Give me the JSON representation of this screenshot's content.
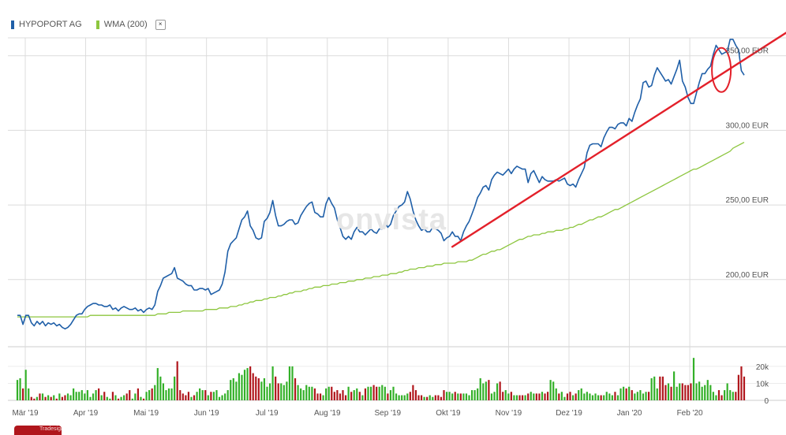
{
  "legend": {
    "items": [
      {
        "label": "HYPOPORT AG",
        "color": "#1f5fa8"
      },
      {
        "label": "WMA (200)",
        "color": "#8dc63f"
      }
    ],
    "close_icon": "×"
  },
  "watermark": "onvista",
  "trade_badge": "Tradesignal®",
  "colors": {
    "price": "#1f5fa8",
    "wma": "#8dc63f",
    "trend": "#e3202a",
    "vol_up": "#33b028",
    "vol_down": "#b0161c",
    "grid": "#dcdcdc"
  },
  "chart_data": {
    "type": "line",
    "x_labels": [
      "Mär '19",
      "Apr '19",
      "Mai '19",
      "Jun '19",
      "Jul '19",
      "Aug '19",
      "Sep '19",
      "Okt '19",
      "Nov '19",
      "Dez '19",
      "Jan '20",
      "Feb '20"
    ],
    "y_ticks": [
      {
        "value": 200,
        "label": "200,00 EUR"
      },
      {
        "value": 250,
        "label": "250,00 EUR"
      },
      {
        "value": 300,
        "label": "300,00 EUR"
      },
      {
        "value": 350,
        "label": "350,00 EUR"
      }
    ],
    "ylim": [
      155,
      362
    ],
    "series": [
      {
        "name": "HYPOPORT AG",
        "values": [
          176,
          176,
          170,
          176,
          176,
          171,
          169,
          172,
          170,
          172,
          169,
          171,
          170,
          171,
          169,
          170,
          168,
          167,
          168,
          170,
          173,
          176,
          177,
          177,
          180,
          182,
          183,
          184,
          184,
          183,
          183,
          182,
          182,
          183,
          180,
          181,
          179,
          181,
          182,
          181,
          180,
          180,
          181,
          179,
          180,
          178,
          180,
          181,
          180,
          183,
          192,
          196,
          201,
          202,
          203,
          204,
          208,
          201,
          200,
          199,
          197,
          196,
          196,
          193,
          193,
          194,
          194,
          193,
          194,
          190,
          191,
          192,
          193,
          197,
          205,
          219,
          224,
          226,
          228,
          234,
          240,
          242,
          246,
          236,
          233,
          228,
          227,
          228,
          239,
          241,
          245,
          253,
          243,
          236,
          236,
          237,
          239,
          240,
          240,
          237,
          238,
          243,
          246,
          249,
          251,
          252,
          245,
          244,
          242,
          242,
          251,
          255,
          251,
          248,
          240,
          235,
          229,
          227,
          229,
          227,
          232,
          235,
          232,
          232,
          230,
          232,
          234,
          232,
          231,
          234,
          234,
          238,
          235,
          237,
          243,
          246,
          249,
          250,
          252,
          259,
          254,
          246,
          240,
          236,
          233,
          234,
          232,
          232,
          235,
          234,
          233,
          231,
          226,
          228,
          229,
          232,
          229,
          229,
          226,
          232,
          236,
          239,
          244,
          249,
          255,
          258,
          262,
          263,
          260,
          267,
          270,
          272,
          271,
          270,
          272,
          274,
          271,
          274,
          276,
          275,
          274,
          274,
          265,
          271,
          273,
          269,
          265,
          269,
          267,
          266,
          266,
          266,
          267,
          266,
          267,
          268,
          264,
          263,
          264,
          262,
          267,
          271,
          275,
          285,
          290,
          291,
          291,
          291,
          289,
          295,
          299,
          302,
          302,
          301,
          304,
          305,
          305,
          303,
          308,
          306,
          312,
          317,
          321,
          332,
          333,
          329,
          330,
          337,
          342,
          339,
          336,
          333,
          334,
          331,
          336,
          341,
          347,
          333,
          329,
          322,
          318,
          318,
          325,
          332,
          338,
          338,
          341,
          343,
          351,
          357,
          354,
          351,
          352,
          353,
          361,
          361,
          357,
          354,
          340,
          337
        ]
      },
      {
        "name": "WMA (200)",
        "values": [
          175,
          175,
          175,
          175,
          175,
          175,
          175,
          175,
          175,
          175,
          175,
          175,
          175,
          175,
          175,
          175,
          175,
          175,
          175,
          175,
          175,
          175,
          175,
          175,
          175,
          175,
          176,
          176,
          176,
          176,
          176,
          176,
          176,
          176,
          176,
          176,
          176,
          176,
          176,
          176,
          176,
          176,
          176,
          176,
          176,
          176,
          176,
          176,
          176,
          176,
          177,
          177,
          177,
          177,
          178,
          178,
          178,
          178,
          178,
          179,
          179,
          179,
          179,
          179,
          179,
          179,
          179,
          180,
          180,
          180,
          180,
          180,
          181,
          181,
          181,
          181,
          182,
          182,
          182,
          183,
          183,
          184,
          184,
          185,
          185,
          186,
          186,
          186,
          187,
          187,
          188,
          188,
          188,
          189,
          189,
          190,
          190,
          191,
          191,
          192,
          192,
          192,
          193,
          193,
          194,
          194,
          195,
          195,
          195,
          196,
          196,
          196,
          197,
          197,
          197,
          198,
          198,
          198,
          199,
          199,
          199,
          200,
          200,
          200,
          201,
          201,
          201,
          202,
          202,
          202,
          203,
          203,
          203,
          204,
          204,
          204,
          205,
          205,
          206,
          206,
          207,
          207,
          207,
          208,
          208,
          208,
          209,
          209,
          209,
          210,
          210,
          210,
          211,
          211,
          211,
          211,
          211,
          212,
          212,
          212,
          212,
          213,
          213,
          214,
          215,
          216,
          217,
          217,
          218,
          219,
          219,
          220,
          220,
          221,
          222,
          223,
          224,
          225,
          226,
          227,
          227,
          228,
          229,
          229,
          230,
          230,
          230,
          231,
          231,
          232,
          232,
          232,
          233,
          233,
          233,
          234,
          234,
          235,
          235,
          236,
          237,
          237,
          238,
          239,
          240,
          240,
          241,
          242,
          242,
          243,
          244,
          245,
          246,
          247,
          247,
          248,
          249,
          250,
          251,
          252,
          253,
          254,
          255,
          256,
          257,
          258,
          259,
          260,
          261,
          262,
          263,
          264,
          265,
          266,
          267,
          268,
          269,
          270,
          271,
          272,
          273,
          274,
          274,
          275,
          276,
          277,
          278,
          279,
          280,
          281,
          282,
          283,
          284,
          285,
          286,
          288,
          289,
          290,
          291,
          292
        ]
      }
    ],
    "trendline": {
      "start": {
        "index": 155,
        "value": 222
      },
      "end": {
        "index": 262,
        "value": 351
      }
    },
    "highlight_ellipse": {
      "index": 252,
      "value": 341
    },
    "volume": {
      "y_ticks": [
        {
          "value": 0,
          "label": "0"
        },
        {
          "value": 10000,
          "label": "10k"
        },
        {
          "value": 20000,
          "label": "20k"
        }
      ],
      "ylim": [
        0,
        26000
      ],
      "values": [
        12000,
        13000,
        7000,
        18000,
        7000,
        2000,
        1000,
        2000,
        4000,
        4000,
        2000,
        3000,
        2000,
        3000,
        1000,
        4000,
        2000,
        3000,
        4000,
        3000,
        7000,
        5000,
        5000,
        6000,
        4000,
        6000,
        2000,
        4000,
        6000,
        7000,
        3000,
        5000,
        2000,
        1000,
        5000,
        3000,
        1000,
        2000,
        3000,
        4000,
        6000,
        1000,
        4000,
        7000,
        2000,
        1000,
        5000,
        6000,
        7000,
        9000,
        19000,
        14000,
        10000,
        6000,
        7000,
        7000,
        14000,
        23000,
        6000,
        4000,
        3000,
        5000,
        2000,
        3000,
        5000,
        7000,
        6000,
        6000,
        3000,
        5000,
        5000,
        6000,
        2000,
        3000,
        4000,
        6000,
        12000,
        13000,
        11000,
        16000,
        15000,
        18000,
        19000,
        20000,
        16000,
        14000,
        13000,
        11000,
        13000,
        8000,
        10000,
        20000,
        14000,
        10000,
        10000,
        9000,
        11000,
        20000,
        20000,
        13000,
        9000,
        7000,
        6000,
        9000,
        8000,
        8000,
        7000,
        4000,
        4000,
        3000,
        7000,
        8000,
        8000,
        5000,
        6000,
        4000,
        6000,
        3000,
        8000,
        5000,
        6000,
        7000,
        5000,
        3000,
        7000,
        8000,
        8000,
        9000,
        8000,
        8000,
        9000,
        8000,
        4000,
        6000,
        8000,
        4000,
        3000,
        3000,
        3000,
        4000,
        5000,
        9000,
        6000,
        3000,
        3000,
        2000,
        2000,
        3000,
        2000,
        3000,
        3000,
        2000,
        6000,
        5000,
        5000,
        4000,
        5000,
        4000,
        4000,
        4000,
        4000,
        3000,
        6000,
        6000,
        7000,
        13000,
        10000,
        11000,
        12000,
        4000,
        5000,
        10000,
        11000,
        5000,
        6000,
        4000,
        5000,
        3000,
        3000,
        3000,
        3000,
        3000,
        4000,
        5000,
        4000,
        4000,
        4000,
        5000,
        4000,
        5000,
        12000,
        11000,
        7000,
        4000,
        5000,
        2000,
        4000,
        5000,
        3000,
        4000,
        6000,
        7000,
        4000,
        5000,
        4000,
        3000,
        4000,
        3000,
        3000,
        3000,
        5000,
        4000,
        3000,
        5000,
        3000,
        7000,
        8000,
        7000,
        8000,
        6000,
        4000,
        5000,
        6000,
        4000,
        5000,
        5000,
        13000,
        14000,
        7000,
        14000,
        14000,
        9000,
        10000,
        8000,
        17000,
        8000,
        10000,
        10000,
        9000,
        9000,
        10000,
        25000,
        10000,
        11000,
        8000,
        9000,
        12000,
        9000,
        5000,
        3000,
        6000,
        3000,
        6000,
        10000,
        6000,
        5000,
        5000,
        15000,
        20000,
        14000
      ]
    }
  }
}
